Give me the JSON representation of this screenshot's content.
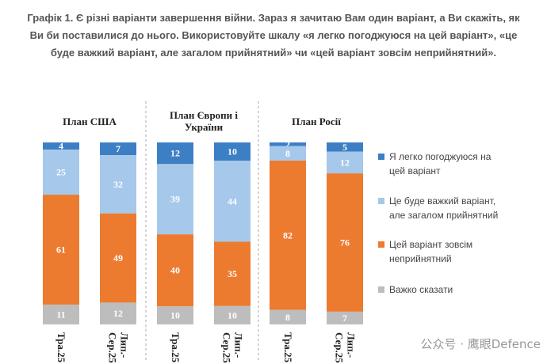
{
  "title": "Графік 1. Є різні варіанти завершення війни. Зараз я зачитаю Вам один варіант, а Ви скажіть, як Ви би поставилися до нього. Використовуйте шкалу «я легко погоджуюся на цей варіант», «це буде важкий варіант, але загалом прийнятний» чи «цей варіант зовсім неприйнятний».",
  "watermark": "公众号 · 鹰眼Defence",
  "colors": {
    "easy": "#3c7fc4",
    "hard": "#a6c8ea",
    "unacceptable": "#ec7b30",
    "hard_to_say": "#bdbdbd"
  },
  "chart_data": {
    "type": "bar",
    "stacked": true,
    "normalized": true,
    "groups": [
      {
        "title": [
          "План США"
        ],
        "categories": [
          "Тра.25",
          "Лип.-Сер.25"
        ]
      },
      {
        "title": [
          "План Європи і",
          "України"
        ],
        "categories": [
          "Тра.25",
          "Лип.-Сер.25"
        ]
      },
      {
        "title": [
          "План Росії"
        ],
        "categories": [
          "Тра.25",
          "Лип.-Сер.25"
        ]
      }
    ],
    "series": [
      {
        "name": "Я легко погоджуюся на цей варіант",
        "key": "easy",
        "values": [
          [
            4,
            7
          ],
          [
            12,
            10
          ],
          [
            2,
            5
          ]
        ],
        "labels": [
          [
            "4",
            "7"
          ],
          [
            "12",
            "10"
          ],
          [
            "2",
            "5"
          ]
        ]
      },
      {
        "name": "Це буде важкий варіант, але загалом прийнятний",
        "key": "hard",
        "values": [
          [
            25,
            32
          ],
          [
            39,
            44
          ],
          [
            8,
            12
          ]
        ],
        "labels": [
          [
            "25",
            "32"
          ],
          [
            "39",
            "44"
          ],
          [
            "8",
            "12"
          ]
        ]
      },
      {
        "name": "Цей варіант зовсім неприйнятний",
        "key": "unacceptable",
        "values": [
          [
            61,
            49
          ],
          [
            40,
            35
          ],
          [
            82,
            76
          ]
        ],
        "labels": [
          [
            "61",
            "49"
          ],
          [
            "40",
            "35"
          ],
          [
            "82",
            "76"
          ]
        ]
      },
      {
        "name": "Важко сказати",
        "key": "hard_to_say",
        "values": [
          [
            11,
            12
          ],
          [
            10,
            10
          ],
          [
            8,
            7
          ]
        ],
        "labels": [
          [
            "11",
            "12"
          ],
          [
            "10",
            "10"
          ],
          [
            "8",
            "7"
          ]
        ]
      }
    ],
    "legend_position": "right",
    "legend_lines": [
      [
        "Я легко погоджуюся на",
        "цей варіант"
      ],
      [
        "Це буде важкий варіант,",
        "але загалом прийнятний"
      ],
      [
        "Цей варіант зовсім",
        "неприйнятний"
      ],
      [
        "Важко сказати"
      ]
    ],
    "category_lines": [
      [
        "Тра.25"
      ],
      [
        "Лип.-",
        "Сер.25"
      ]
    ]
  }
}
